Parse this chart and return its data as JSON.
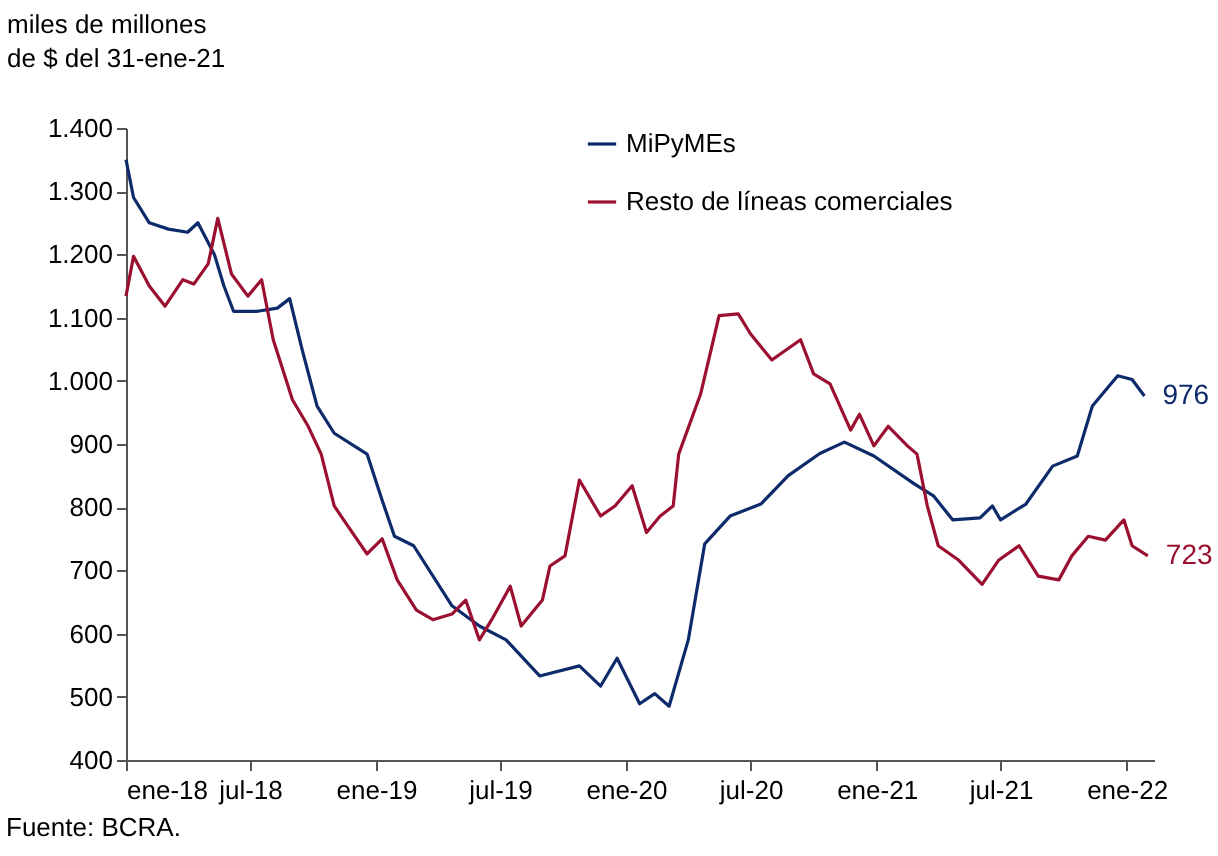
{
  "chart_data": {
    "type": "line",
    "ylabel": "miles de millones\nde $ del 31-ene-21",
    "xlim": [
      "2018-01-01",
      "2022-02-10"
    ],
    "xticks": [
      {
        "value": "2018-01-01",
        "label": "ene-18"
      },
      {
        "value": "2018-07-01",
        "label": "jul-18"
      },
      {
        "value": "2019-01-01",
        "label": "ene-19"
      },
      {
        "value": "2019-07-01",
        "label": "jul-19"
      },
      {
        "value": "2020-01-01",
        "label": "ene-20"
      },
      {
        "value": "2020-07-01",
        "label": "jul-20"
      },
      {
        "value": "2021-01-01",
        "label": "ene-21"
      },
      {
        "value": "2021-07-01",
        "label": "jul-21"
      },
      {
        "value": "2022-01-01",
        "label": "ene-22"
      }
    ],
    "ylim": [
      400,
      1400
    ],
    "yticks": [
      {
        "value": 400,
        "label": "400"
      },
      {
        "value": 500,
        "label": "500"
      },
      {
        "value": 600,
        "label": "600"
      },
      {
        "value": 700,
        "label": "700"
      },
      {
        "value": 800,
        "label": "800"
      },
      {
        "value": 900,
        "label": "900"
      },
      {
        "value": 1000,
        "label": "1.000"
      },
      {
        "value": 1100,
        "label": "1.100"
      },
      {
        "value": 1200,
        "label": "1.200"
      },
      {
        "value": 1300,
        "label": "1.300"
      },
      {
        "value": 1400,
        "label": "1.400"
      }
    ],
    "legend": "top",
    "series": [
      {
        "name": "MiPyMEs",
        "color": "#0d2a6b",
        "x": [
          "2018-01-01",
          "2018-01-12",
          "2018-02-04",
          "2018-03-04",
          "2018-04-01",
          "2018-04-16",
          "2018-05-10",
          "2018-05-24",
          "2018-06-07",
          "2018-07-12",
          "2018-08-10",
          "2018-08-28",
          "2018-09-15",
          "2018-10-07",
          "2018-11-01",
          "2018-12-19",
          "2019-01-10",
          "2019-01-28",
          "2019-02-25",
          "2019-04-22",
          "2019-06-01",
          "2019-07-10",
          "2019-08-28",
          "2019-10-25",
          "2019-11-25",
          "2019-12-19",
          "2020-01-21",
          "2020-02-12",
          "2020-03-04",
          "2020-04-01",
          "2020-04-25",
          "2020-06-01",
          "2020-07-16",
          "2020-08-25",
          "2020-10-10",
          "2020-11-15",
          "2020-12-28",
          "2021-02-25",
          "2021-03-25",
          "2021-04-22",
          "2021-06-01",
          "2021-06-19",
          "2021-07-01",
          "2021-08-07",
          "2021-09-15",
          "2021-10-21",
          "2021-11-12",
          "2021-12-19",
          "2022-01-09",
          "2022-01-27"
        ],
        "values": [
          1350,
          1290,
          1250,
          1240,
          1235,
          1250,
          1200,
          1150,
          1110,
          1110,
          1115,
          1130,
          1050,
          960,
          917,
          884,
          811,
          754,
          739,
          644,
          612,
          590,
          533,
          549,
          517,
          561,
          489,
          505,
          485,
          590,
          742,
          786,
          805,
          850,
          885,
          903,
          881,
          837,
          818,
          780,
          783,
          802,
          780,
          805,
          865,
          881,
          960,
          1008,
          1002,
          976
        ]
      },
      {
        "name": "Resto de líneas comerciales",
        "color": "#9b1030",
        "x": [
          "2018-01-01",
          "2018-01-12",
          "2018-02-04",
          "2018-02-27",
          "2018-03-25",
          "2018-04-10",
          "2018-05-01",
          "2018-05-15",
          "2018-06-04",
          "2018-06-28",
          "2018-07-18",
          "2018-08-04",
          "2018-09-01",
          "2018-09-24",
          "2018-10-13",
          "2018-11-01",
          "2018-11-21",
          "2018-12-19",
          "2019-01-10",
          "2019-02-01",
          "2019-03-01",
          "2019-03-25",
          "2019-04-22",
          "2019-05-12",
          "2019-06-01",
          "2019-06-19",
          "2019-07-16",
          "2019-08-01",
          "2019-09-01",
          "2019-09-12",
          "2019-10-04",
          "2019-10-25",
          "2019-11-25",
          "2019-12-16",
          "2020-01-10",
          "2020-01-31",
          "2020-02-20",
          "2020-03-10",
          "2020-03-18",
          "2020-04-19",
          "2020-05-16",
          "2020-06-13",
          "2020-07-01",
          "2020-08-01",
          "2020-09-12",
          "2020-10-01",
          "2020-10-25",
          "2020-11-24",
          "2020-12-07",
          "2020-12-28",
          "2021-01-18",
          "2021-02-15",
          "2021-03-01",
          "2021-03-16",
          "2021-04-01",
          "2021-05-01",
          "2021-06-04",
          "2021-06-28",
          "2021-07-28",
          "2021-08-25",
          "2021-09-24",
          "2021-10-13",
          "2021-11-06",
          "2021-12-01",
          "2021-12-28",
          "2022-01-09",
          "2022-02-01"
        ],
        "values": [
          1134,
          1197,
          1150,
          1118,
          1160,
          1153,
          1185,
          1257,
          1169,
          1134,
          1160,
          1065,
          970,
          928,
          884,
          802,
          770,
          726,
          750,
          685,
          637,
          622,
          631,
          653,
          590,
          622,
          675,
          612,
          653,
          707,
          723,
          843,
          786,
          802,
          834,
          760,
          786,
          802,
          884,
          979,
          1103,
          1106,
          1074,
          1033,
          1065,
          1011,
          995,
          922,
          947,
          897,
          928,
          897,
          884,
          802,
          739,
          716,
          678,
          716,
          739,
          691,
          685,
          723,
          754,
          748,
          780,
          739,
          723
        ]
      }
    ],
    "annotations": [
      {
        "text": "976",
        "x": "2022-01-27",
        "y": 976
      },
      {
        "text": "723",
        "x": "2022-02-01",
        "y": 723
      },
      "Fuente: BCRA."
    ]
  }
}
